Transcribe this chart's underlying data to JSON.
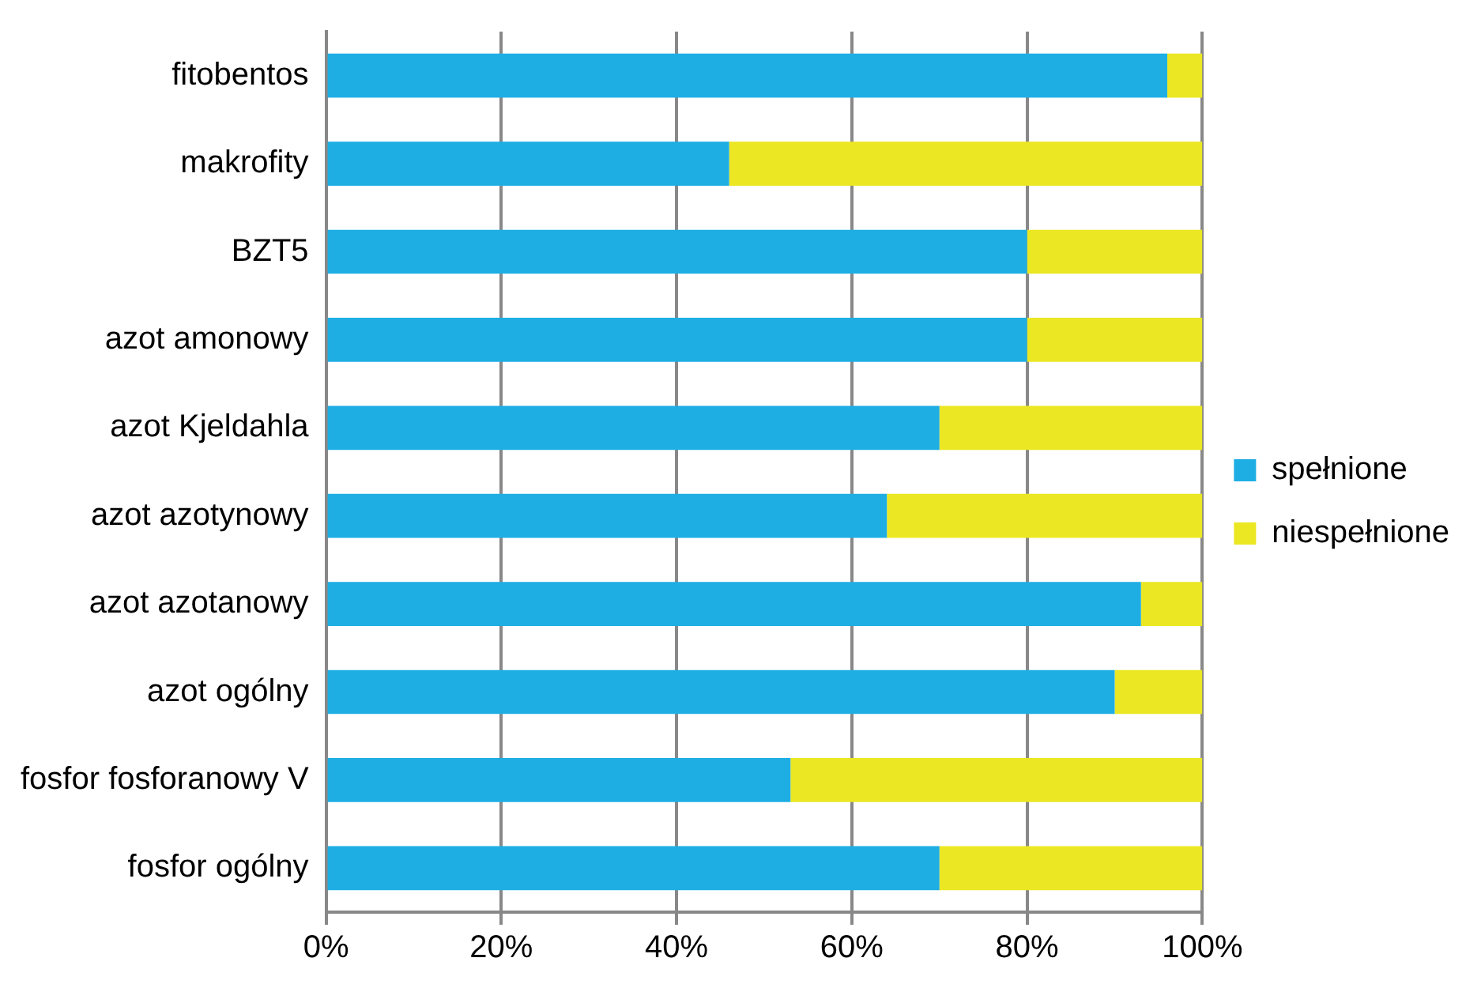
{
  "chart_data": {
    "type": "bar",
    "orientation": "horizontal",
    "stacked": true,
    "categories": [
      "fitobentos",
      "makrofity",
      "BZT5",
      "azot amonowy",
      "azot Kjeldahla",
      "azot azotynowy",
      "azot azotanowy",
      "azot ogólny",
      "fosfor fosforanowy V",
      "fosfor ogólny"
    ],
    "series": [
      {
        "name": "spełnione",
        "color": "#1eaee4",
        "values": [
          96,
          46,
          80,
          80,
          70,
          64,
          93,
          90,
          53,
          70
        ]
      },
      {
        "name": "niespełnione",
        "color": "#ebe723",
        "values": [
          4,
          54,
          20,
          20,
          30,
          36,
          7,
          10,
          47,
          30
        ]
      }
    ],
    "xlim": [
      0,
      100
    ],
    "xticks": [
      {
        "value": 0,
        "label": "0%"
      },
      {
        "value": 20,
        "label": "20%"
      },
      {
        "value": 40,
        "label": "40%"
      },
      {
        "value": 60,
        "label": "60%"
      },
      {
        "value": 80,
        "label": "80%"
      },
      {
        "value": 100,
        "label": "100%"
      }
    ],
    "grid": "x",
    "legend": "right"
  }
}
